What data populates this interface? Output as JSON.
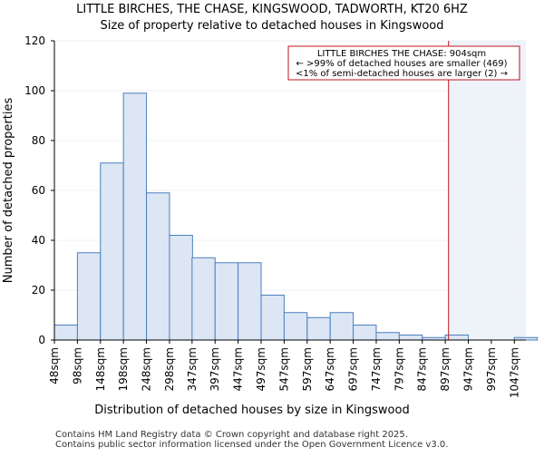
{
  "chart_data": {
    "type": "bar",
    "title_line1": "LITTLE BIRCHES, THE CHASE, KINGSWOOD, TADWORTH, KT20 6HZ",
    "title_line2": "Size of property relative to detached houses in Kingswood",
    "xlabel": "Distribution of detached houses by size in Kingswood",
    "ylabel": "Number of detached properties",
    "ylim": [
      0,
      120
    ],
    "yticks": [
      0,
      20,
      40,
      60,
      80,
      100,
      120
    ],
    "xlim": [
      48,
      1072
    ],
    "categories": [
      "48sqm",
      "98sqm",
      "148sqm",
      "198sqm",
      "248sqm",
      "298sqm",
      "347sqm",
      "397sqm",
      "447sqm",
      "497sqm",
      "547sqm",
      "597sqm",
      "647sqm",
      "697sqm",
      "747sqm",
      "797sqm",
      "847sqm",
      "897sqm",
      "947sqm",
      "997sqm",
      "1047sqm"
    ],
    "bin_starts": [
      48,
      98,
      148,
      198,
      248,
      298,
      347,
      397,
      447,
      497,
      547,
      597,
      647,
      697,
      747,
      797,
      847,
      897,
      947,
      997,
      1047
    ],
    "bin_width": 50,
    "values": [
      6,
      35,
      71,
      99,
      59,
      42,
      33,
      31,
      31,
      18,
      11,
      9,
      11,
      6,
      3,
      2,
      1,
      2,
      0,
      0,
      1
    ],
    "bar_color": "#dce6f4",
    "bar_edge_color": "#4a7fbf",
    "marker": {
      "value": 904,
      "color": "#c0141e",
      "shade_color": "#eef2f9",
      "label_lines": [
        "LITTLE BIRCHES THE CHASE: 904sqm",
        "← >99% of detached houses are smaller (469)",
        "<1% of semi-detached houses are larger (2) →"
      ]
    }
  },
  "footer": {
    "line1": "Contains HM Land Registry data © Crown copyright and database right 2025.",
    "line2": "Contains public sector information licensed under the Open Government Licence v3.0."
  }
}
